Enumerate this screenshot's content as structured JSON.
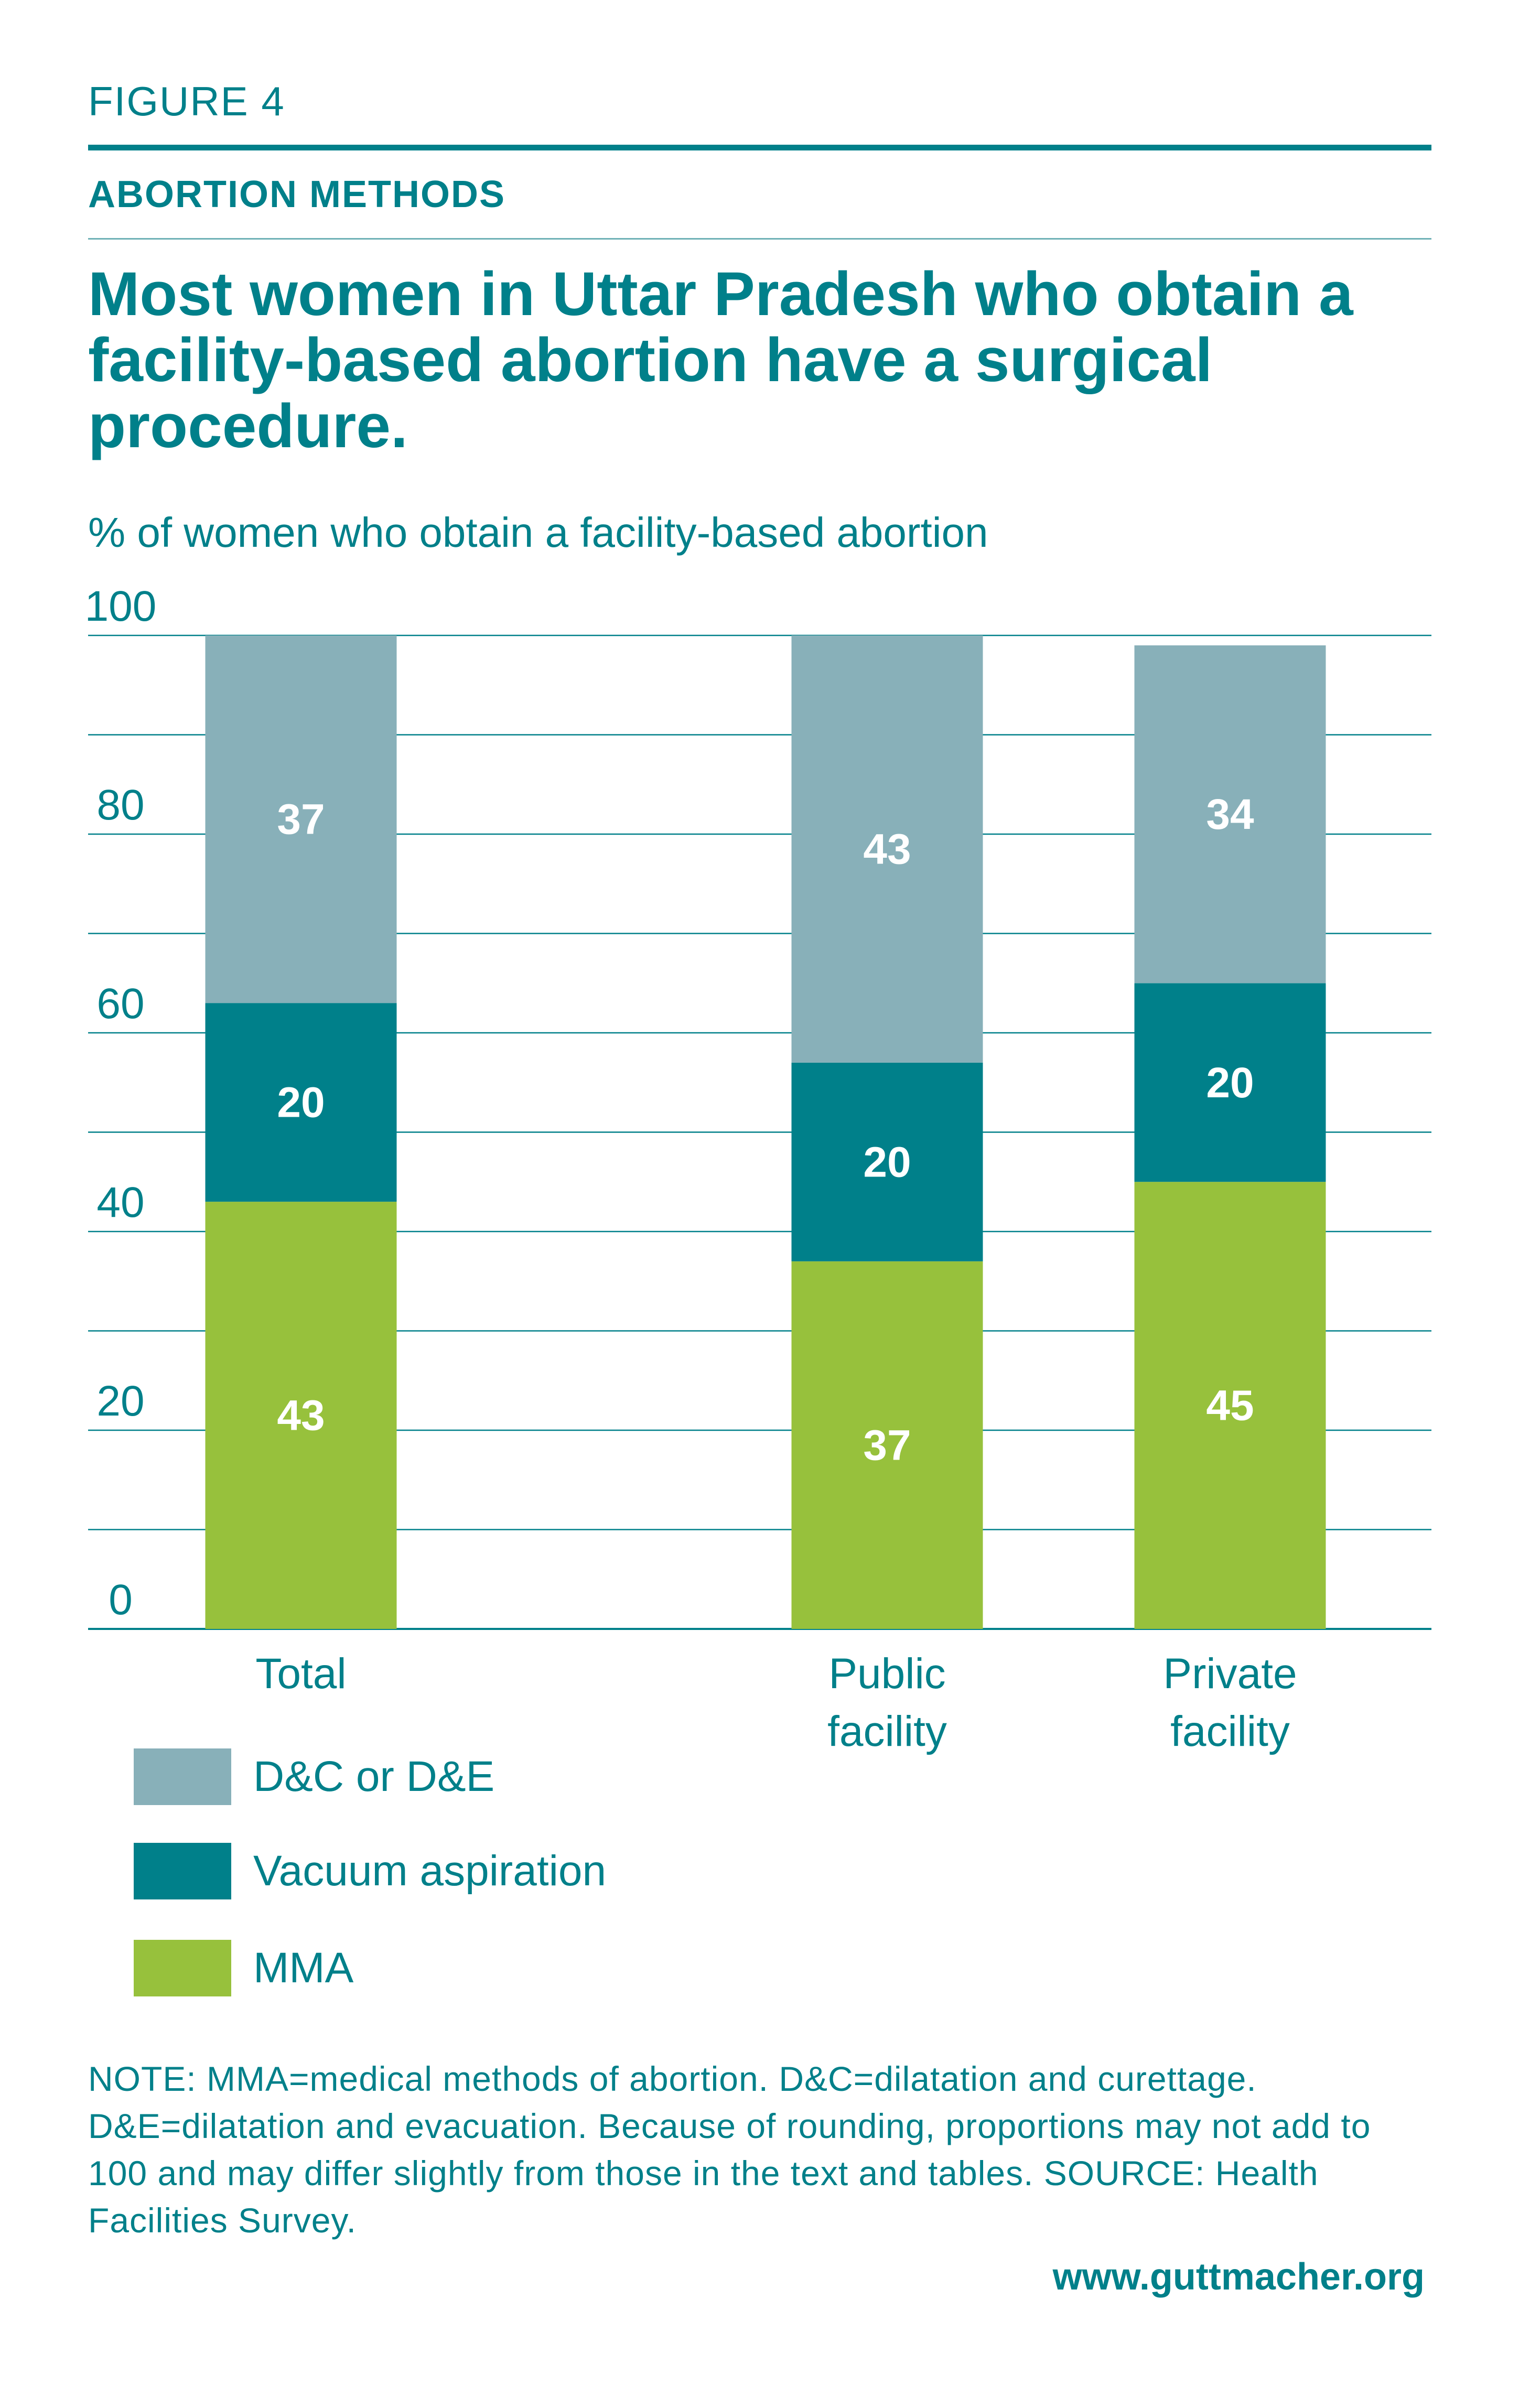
{
  "header": {
    "figure_label": "FIGURE 4",
    "section_label": "ABORTION METHODS",
    "headline": "Most women in Uttar Pradesh who obtain a facility-based abortion have a surgical procedure."
  },
  "colors": {
    "teal_text": "#00808a",
    "dc_de": "#88b0b9",
    "vacuum": "#00808a",
    "mma": "#97c13c",
    "gridline": "#00808a"
  },
  "chart_data": {
    "type": "bar",
    "stacked": true,
    "ylabel": "% of women who obtain a facility-based abortion",
    "ylim": [
      0,
      100
    ],
    "yticks": [
      0,
      20,
      40,
      60,
      80,
      100
    ],
    "grid": true,
    "categories": [
      "Total",
      "Public facility",
      "Private facility"
    ],
    "category_lines": [
      [
        "Total"
      ],
      [
        "Public",
        "facility"
      ],
      [
        "Private",
        "facility"
      ]
    ],
    "series": [
      {
        "name": "MMA",
        "color": "#97c13c",
        "values": [
          43,
          37,
          45
        ]
      },
      {
        "name": "Vacuum aspiration",
        "color": "#00808a",
        "values": [
          20,
          20,
          20
        ]
      },
      {
        "name": "D&C or D&E",
        "color": "#88b0b9",
        "values": [
          37,
          43,
          34
        ]
      }
    ],
    "legend_placement": "bottom-left",
    "legend_order": [
      "D&C or D&E",
      "Vacuum aspiration",
      "MMA"
    ]
  },
  "legend": {
    "items": [
      {
        "label": "D&C or D&E",
        "color": "#88b0b9"
      },
      {
        "label": "Vacuum aspiration",
        "color": "#00808a"
      },
      {
        "label": "MMA",
        "color": "#97c13c"
      }
    ]
  },
  "note": "NOTE: MMA=medical methods of abortion. D&C=dilatation and curettage. D&E=dilatation and evacuation. Because of rounding, proportions may not add to 100 and may differ slightly from those in the text and tables. SOURCE: Health Facilities Survey.",
  "footer": {
    "url": "www.guttmacher.org"
  }
}
